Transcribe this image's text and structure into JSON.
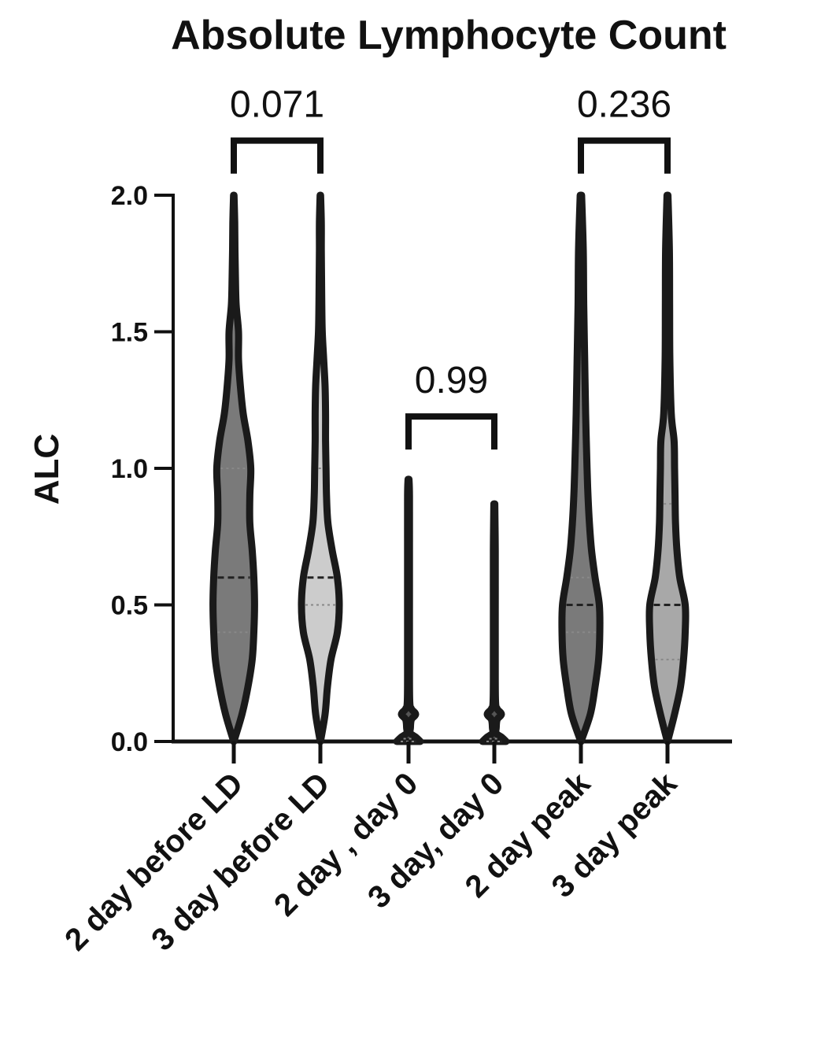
{
  "chart_data": {
    "type": "violin",
    "title": "Absolute Lymphocyte Count",
    "ylabel": "ALC",
    "xlabel": "",
    "ylim": [
      0,
      2.0
    ],
    "yticks": [
      "0.0",
      "0.5",
      "1.0",
      "1.5",
      "2.0"
    ],
    "ytick_values": [
      0,
      0.5,
      1.0,
      1.5,
      2.0
    ],
    "grid": false,
    "categories": [
      "2 day before LD",
      "3 day before LD",
      "2 day , day 0",
      "3 day, day 0",
      "2 day peak",
      "3 day peak"
    ],
    "series": [
      {
        "category": "2 day before LD",
        "fill": "#7a7a7a",
        "max": 2.0,
        "median": 0.6,
        "q1": 0.4,
        "q3": 1.0,
        "profile": [
          [
            0,
            0.005
          ],
          [
            0.1,
            0.35
          ],
          [
            0.2,
            0.6
          ],
          [
            0.3,
            0.78
          ],
          [
            0.4,
            0.85
          ],
          [
            0.5,
            0.88
          ],
          [
            0.6,
            0.85
          ],
          [
            0.7,
            0.78
          ],
          [
            0.8,
            0.68
          ],
          [
            0.9,
            0.68
          ],
          [
            1.0,
            0.72
          ],
          [
            1.1,
            0.6
          ],
          [
            1.2,
            0.4
          ],
          [
            1.3,
            0.28
          ],
          [
            1.4,
            0.2
          ],
          [
            1.5,
            0.2
          ],
          [
            1.6,
            0.1
          ],
          [
            1.7,
            0.07
          ],
          [
            1.8,
            0.05
          ],
          [
            1.9,
            0.04
          ],
          [
            2.0,
            0.01
          ]
        ]
      },
      {
        "category": "3 day before LD",
        "fill": "#cccccc",
        "max": 2.0,
        "median": 0.6,
        "q1": 0.5,
        "q3": 1.0,
        "profile": [
          [
            0,
            0.005
          ],
          [
            0.1,
            0.2
          ],
          [
            0.2,
            0.3
          ],
          [
            0.3,
            0.45
          ],
          [
            0.4,
            0.72
          ],
          [
            0.5,
            0.8
          ],
          [
            0.6,
            0.72
          ],
          [
            0.7,
            0.5
          ],
          [
            0.8,
            0.32
          ],
          [
            0.9,
            0.26
          ],
          [
            1.0,
            0.24
          ],
          [
            1.1,
            0.22
          ],
          [
            1.2,
            0.22
          ],
          [
            1.3,
            0.2
          ],
          [
            1.4,
            0.14
          ],
          [
            1.5,
            0.08
          ],
          [
            1.6,
            0.06
          ],
          [
            1.7,
            0.05
          ],
          [
            1.8,
            0.04
          ],
          [
            1.9,
            0.04
          ],
          [
            2.0,
            0.01
          ]
        ]
      },
      {
        "category": "2 day , day 0",
        "fill": "#555555",
        "max": 0.96,
        "median": 0.0,
        "q1": 0.0,
        "q3": 0.01,
        "profile": [
          [
            0,
            0.5
          ],
          [
            0.015,
            0.32
          ],
          [
            0.03,
            0.08
          ],
          [
            0.05,
            0.08
          ],
          [
            0.08,
            0.12
          ],
          [
            0.1,
            0.3
          ],
          [
            0.12,
            0.12
          ],
          [
            0.15,
            0.05
          ],
          [
            0.3,
            0.04
          ],
          [
            0.5,
            0.04
          ],
          [
            0.7,
            0.04
          ],
          [
            0.9,
            0.04
          ],
          [
            0.96,
            0.02
          ]
        ]
      },
      {
        "category": "3 day, day 0",
        "fill": "#555555",
        "max": 0.87,
        "median": 0.0,
        "q1": 0.0,
        "q3": 0.01,
        "profile": [
          [
            0,
            0.5
          ],
          [
            0.015,
            0.32
          ],
          [
            0.03,
            0.08
          ],
          [
            0.05,
            0.08
          ],
          [
            0.08,
            0.12
          ],
          [
            0.1,
            0.3
          ],
          [
            0.12,
            0.12
          ],
          [
            0.15,
            0.05
          ],
          [
            0.3,
            0.04
          ],
          [
            0.5,
            0.04
          ],
          [
            0.7,
            0.04
          ],
          [
            0.87,
            0.02
          ]
        ]
      },
      {
        "category": "2 day peak",
        "fill": "#7a7a7a",
        "max": 2.0,
        "median": 0.5,
        "q1": 0.4,
        "q3": 0.6,
        "profile": [
          [
            0,
            0.005
          ],
          [
            0.1,
            0.4
          ],
          [
            0.2,
            0.6
          ],
          [
            0.3,
            0.75
          ],
          [
            0.4,
            0.8
          ],
          [
            0.5,
            0.78
          ],
          [
            0.6,
            0.6
          ],
          [
            0.7,
            0.45
          ],
          [
            0.8,
            0.36
          ],
          [
            0.9,
            0.3
          ],
          [
            1.0,
            0.26
          ],
          [
            1.2,
            0.2
          ],
          [
            1.4,
            0.16
          ],
          [
            1.6,
            0.12
          ],
          [
            1.8,
            0.1
          ],
          [
            2.0,
            0.03
          ]
        ]
      },
      {
        "category": "3 day peak",
        "fill": "#a8a8a8",
        "max": 2.0,
        "median": 0.5,
        "q1": 0.3,
        "q3": 0.87,
        "profile": [
          [
            0,
            0.005
          ],
          [
            0.1,
            0.3
          ],
          [
            0.2,
            0.55
          ],
          [
            0.3,
            0.68
          ],
          [
            0.4,
            0.75
          ],
          [
            0.5,
            0.75
          ],
          [
            0.6,
            0.52
          ],
          [
            0.7,
            0.4
          ],
          [
            0.8,
            0.34
          ],
          [
            0.9,
            0.32
          ],
          [
            1.0,
            0.3
          ],
          [
            1.1,
            0.28
          ],
          [
            1.2,
            0.16
          ],
          [
            1.4,
            0.1
          ],
          [
            1.6,
            0.09
          ],
          [
            1.8,
            0.08
          ],
          [
            2.0,
            0.02
          ]
        ]
      }
    ],
    "comparisons": [
      {
        "left": 0,
        "right": 1,
        "label": "0.071",
        "y": 2.2
      },
      {
        "left": 2,
        "right": 3,
        "label": "0.99",
        "y": 1.19
      },
      {
        "left": 4,
        "right": 5,
        "label": "0.236",
        "y": 2.2
      }
    ]
  }
}
